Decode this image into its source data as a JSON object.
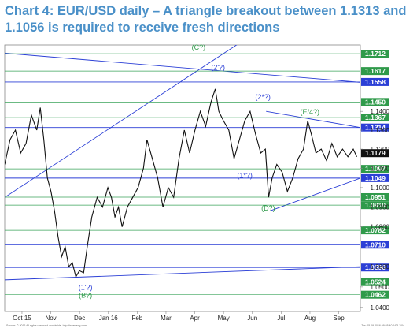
{
  "title": "Chart 4: EUR/USD daily – A triangle breakout between 1.1313 and 1.1056 is required to receive fresh directions",
  "chart_data": {
    "type": "line",
    "title": "Chart 4: EUR/USD daily – A triangle breakout between 1.1313 and 1.1056 is required to receive fresh directions",
    "x_tick_labels": [
      "Oct 15",
      "Nov",
      "Dec",
      "Jan 16",
      "Feb",
      "Mar",
      "Apr",
      "May",
      "Jun",
      "Jul",
      "Aug",
      "Sep"
    ],
    "y_tick_labels": [
      "1.1400",
      "1.1300",
      "1.1200",
      "1.1100",
      "1.1000",
      "1.0900",
      "1.0800",
      "1.0600",
      "1.0500",
      "1.0400"
    ],
    "ylim": [
      1.038,
      1.176
    ],
    "scale": "log",
    "price_levels": [
      {
        "label": "1.1712",
        "value": 1.1712,
        "emphasis": "green"
      },
      {
        "label": "1.1617",
        "value": 1.1617,
        "emphasis": "green"
      },
      {
        "label": "1.1558",
        "value": 1.1558,
        "emphasis": "blue"
      },
      {
        "label": "1.1450",
        "value": 1.145,
        "emphasis": "green"
      },
      {
        "label": "1.1367",
        "value": 1.1367,
        "emphasis": "green"
      },
      {
        "label": "1.1314",
        "value": 1.1314,
        "emphasis": "blue"
      },
      {
        "label": "1.1179",
        "value": 1.1179,
        "emphasis": "current"
      },
      {
        "label": "1.1097",
        "value": 1.1097,
        "emphasis": "green"
      },
      {
        "label": "1.1049",
        "value": 1.1049,
        "emphasis": "blue"
      },
      {
        "label": "1.0951",
        "value": 1.0951,
        "emphasis": "green"
      },
      {
        "label": "1.0910",
        "value": 1.091,
        "emphasis": "green"
      },
      {
        "label": "1.0782",
        "value": 1.0782,
        "emphasis": "green"
      },
      {
        "label": "1.0710",
        "value": 1.071,
        "emphasis": "blue"
      },
      {
        "label": "1.0596",
        "value": 1.0596,
        "emphasis": "blue"
      },
      {
        "label": "1.0524",
        "value": 1.0524,
        "emphasis": "green"
      },
      {
        "label": "1.0462",
        "value": 1.0462,
        "emphasis": "green"
      }
    ],
    "wave_labels": [
      {
        "text": "(C?)",
        "x": 0.545,
        "y": 1.1735,
        "color": "green"
      },
      {
        "text": "(2'?)",
        "x": 0.6,
        "y": 1.1625,
        "color": "blue"
      },
      {
        "text": "(2*?)",
        "x": 0.726,
        "y": 1.1465,
        "color": "blue"
      },
      {
        "text": "(E/4?)",
        "x": 0.858,
        "y": 1.1385,
        "color": "green"
      },
      {
        "text": "(1*?)",
        "x": 0.675,
        "y": 1.105,
        "color": "blue"
      },
      {
        "text": "(D?)",
        "x": 0.741,
        "y": 1.0882,
        "color": "green"
      },
      {
        "text": "(1'?)",
        "x": 0.227,
        "y": 1.0485,
        "color": "blue"
      },
      {
        "text": "(B?)",
        "x": 0.227,
        "y": 1.0448,
        "color": "green"
      }
    ],
    "trendlines": [
      {
        "name": "downtrend from 2015 high",
        "from": [
          0.0,
          1.1715
        ],
        "to": [
          1.0,
          1.1556
        ]
      },
      {
        "name": "long-term uptrend",
        "from": [
          0.0,
          1.0535
        ],
        "to": [
          1.0,
          1.06
        ]
      },
      {
        "name": "support from Nov low",
        "from": [
          0.0,
          1.095
        ],
        "to": [
          0.76,
          1.19
        ]
      },
      {
        "name": "triangle top",
        "from": [
          0.735,
          1.14
        ],
        "to": [
          1.0,
          1.1314
        ]
      },
      {
        "name": "triangle bottom",
        "from": [
          0.745,
          1.088
        ],
        "to": [
          1.0,
          1.1049
        ]
      }
    ],
    "price_series": {
      "x": [
        0.0,
        0.015,
        0.03,
        0.045,
        0.06,
        0.075,
        0.09,
        0.1,
        0.11,
        0.12,
        0.13,
        0.14,
        0.15,
        0.16,
        0.17,
        0.18,
        0.19,
        0.2,
        0.21,
        0.222,
        0.232,
        0.245,
        0.26,
        0.275,
        0.29,
        0.3,
        0.31,
        0.32,
        0.33,
        0.345,
        0.36,
        0.375,
        0.39,
        0.4,
        0.415,
        0.43,
        0.445,
        0.46,
        0.475,
        0.49,
        0.505,
        0.52,
        0.535,
        0.55,
        0.565,
        0.58,
        0.592,
        0.602,
        0.615,
        0.63,
        0.645,
        0.66,
        0.675,
        0.69,
        0.705,
        0.72,
        0.733,
        0.742,
        0.752,
        0.765,
        0.78,
        0.795,
        0.81,
        0.825,
        0.84,
        0.852,
        0.862,
        0.875,
        0.89,
        0.905,
        0.92,
        0.935,
        0.95,
        0.965,
        0.98,
        0.99
      ],
      "values": [
        1.112,
        1.125,
        1.13,
        1.118,
        1.123,
        1.138,
        1.13,
        1.142,
        1.125,
        1.105,
        1.098,
        1.088,
        1.075,
        1.065,
        1.07,
        1.06,
        1.062,
        1.055,
        1.058,
        1.057,
        1.07,
        1.085,
        1.095,
        1.09,
        1.1,
        1.095,
        1.085,
        1.09,
        1.08,
        1.09,
        1.095,
        1.1,
        1.11,
        1.125,
        1.115,
        1.105,
        1.09,
        1.1,
        1.095,
        1.115,
        1.13,
        1.118,
        1.13,
        1.14,
        1.132,
        1.145,
        1.152,
        1.14,
        1.135,
        1.13,
        1.115,
        1.125,
        1.135,
        1.14,
        1.128,
        1.118,
        1.12,
        1.095,
        1.105,
        1.112,
        1.108,
        1.098,
        1.105,
        1.115,
        1.12,
        1.135,
        1.128,
        1.118,
        1.12,
        1.114,
        1.123,
        1.116,
        1.12,
        1.116,
        1.12,
        1.116
      ]
    }
  },
  "footnotes": {
    "left": "Source: © 2016 All rights reserved worldwide. http://www.ecg.com",
    "right": "Thu 15 09 2016 09:55:40 1/04 1/04"
  }
}
